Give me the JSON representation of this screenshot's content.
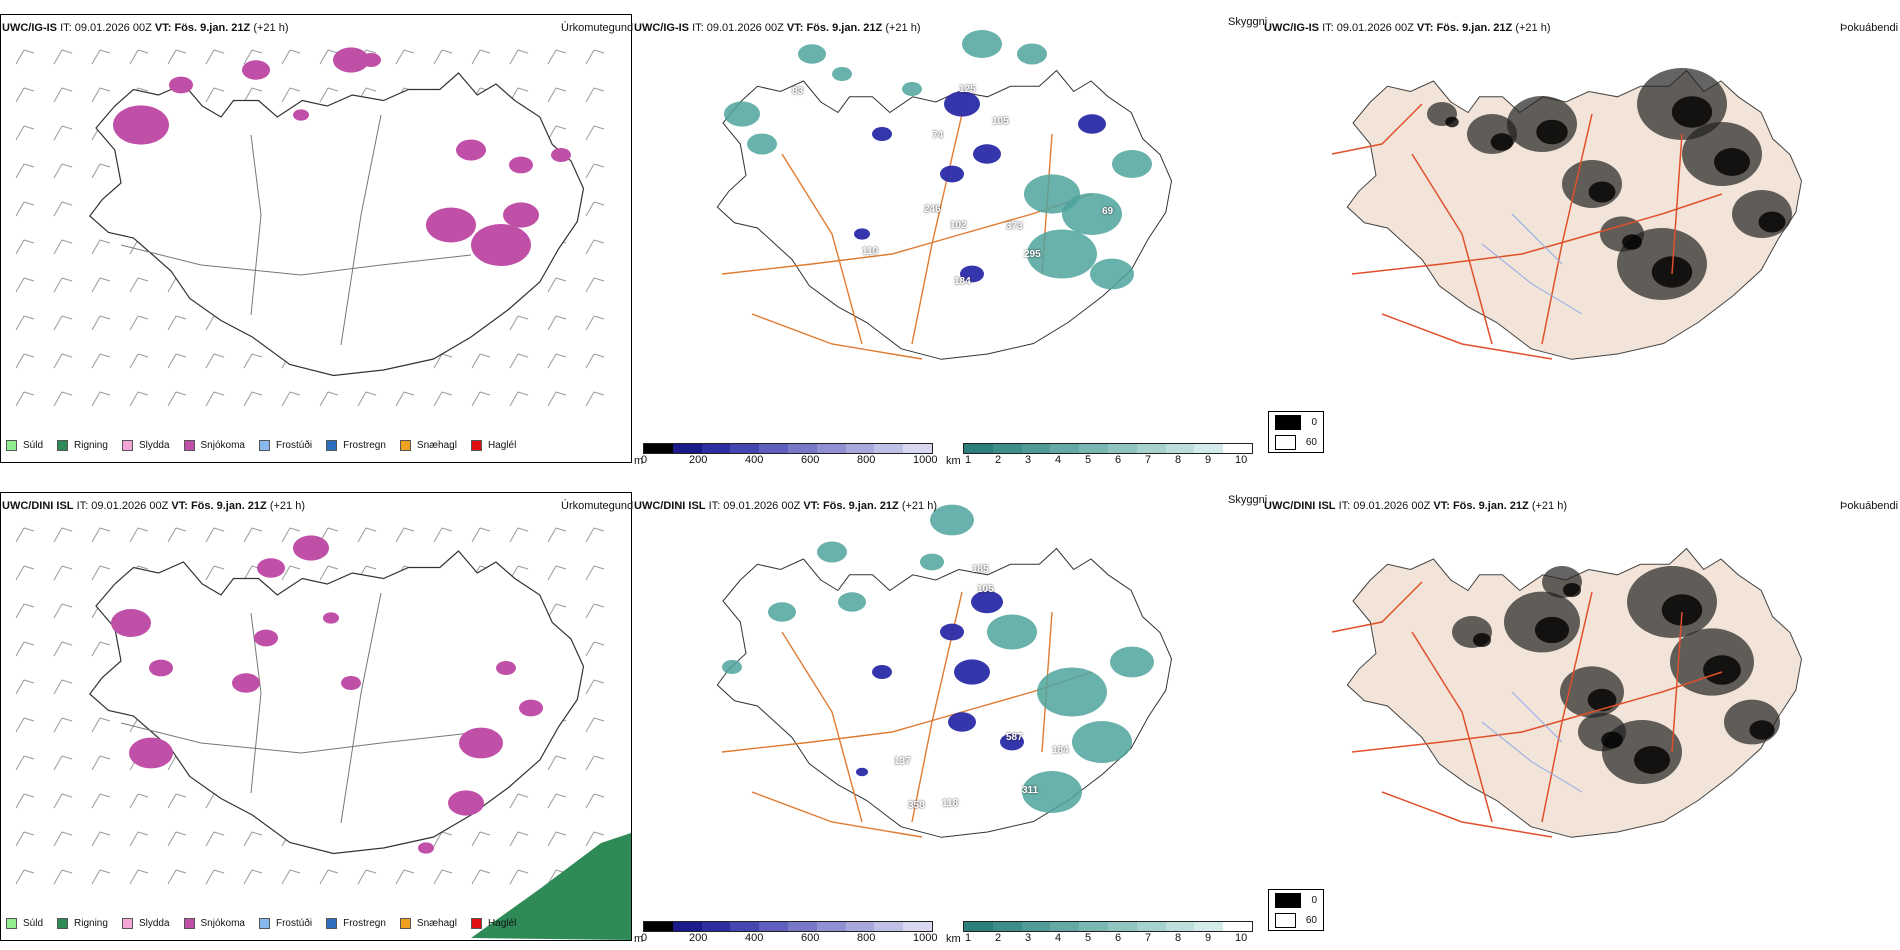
{
  "rows": [
    {
      "header": {
        "model": "UWC/IG-IS",
        "it_label": "IT:",
        "it_value": "09.01.2026 00Z",
        "vt_label": "VT:",
        "vt_value": "Fös. 9.jan. 21Z",
        "lead": "(+21 h)"
      },
      "precip_title": "Úrkomutegund",
      "cloud_title": "Skyggni",
      "fog_title": "Þokuábendi",
      "precip_numbers": [
        "83",
        "125",
        "105",
        "74",
        "246",
        "373",
        "295",
        "184",
        "110",
        "102",
        "69"
      ]
    },
    {
      "header": {
        "model": "UWC/DINI ISL",
        "it_label": "IT:",
        "it_value": "09.01.2026 00Z",
        "vt_label": "VT:",
        "vt_value": "Fös. 9.jan. 21Z",
        "lead": "(+21 h)"
      },
      "precip_title": "Úrkomutegund",
      "cloud_title": "Skyggni",
      "fog_title": "Þokuábendi",
      "precip_numbers": [
        "185",
        "105",
        "587",
        "184",
        "311",
        "118",
        "137",
        "358"
      ]
    }
  ],
  "precip_legend": [
    {
      "label": "Súld",
      "color": "#90ee90"
    },
    {
      "label": "Rigning",
      "color": "#2e8b57"
    },
    {
      "label": "Slydda",
      "color": "#f4a6d7"
    },
    {
      "label": "Snjókoma",
      "color": "#c04fa8"
    },
    {
      "label": "Frostúði",
      "color": "#87b8ee"
    },
    {
      "label": "Frostregn",
      "color": "#2f6fc0"
    },
    {
      "label": "Snæhagl",
      "color": "#f0a020"
    },
    {
      "label": "Haglél",
      "color": "#e01010"
    }
  ],
  "ceiling_bar": {
    "unit": "m",
    "ticks": [
      "0",
      "200",
      "400",
      "600",
      "800",
      "1000"
    ],
    "colors": [
      "#000000",
      "#1a1a8a",
      "#2e2ea0",
      "#4646b0",
      "#5f5fbd",
      "#7878c8",
      "#9090d2",
      "#a8a8dc",
      "#c0c0e6",
      "#d8d8f0"
    ]
  },
  "visibility_bar": {
    "unit": "km",
    "ticks": [
      "1",
      "2",
      "3",
      "4",
      "5",
      "6",
      "7",
      "8",
      "9",
      "10"
    ],
    "colors": [
      "#2a7f7a",
      "#3d8d88",
      "#519b96",
      "#66a9a4",
      "#7ab7b2",
      "#90c4c0",
      "#a6d2ce",
      "#bcdfdc",
      "#d3ecea",
      "#ffffff"
    ]
  },
  "fog_legend": [
    {
      "value": "0",
      "color": "#000000"
    },
    {
      "value": "60",
      "color": "#ffffff"
    }
  ],
  "colors": {
    "snow": "#c04fa8",
    "rain": "#2e8b57",
    "ceiling": "#2a2aa8",
    "vis": "#4fa39c",
    "roads": "#e07a30",
    "fogland": "#f2e4d8",
    "fogroads": "#e0502a"
  }
}
